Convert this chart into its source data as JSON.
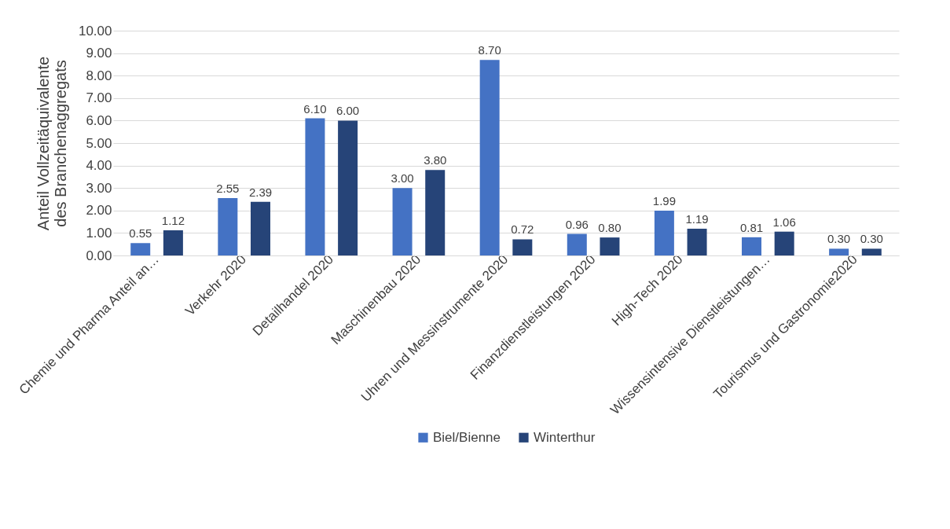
{
  "chart_data": {
    "type": "bar",
    "ylabel": "Anteil Vollzeitäquivalente des Branchenaggregats",
    "categories": [
      "Chemie und Pharma Anteil an…",
      "Verkehr 2020",
      "Detailhandel 2020",
      "Maschinenbau 2020",
      "Uhren und Messinstrumente 2020",
      "Finanzdienstleistungen 2020",
      "High-Tech 2020",
      "Wissensintensive Dienstleistungen…",
      "Tourismus und Gastronomie2020"
    ],
    "series": [
      {
        "name": "Biel/Bienne",
        "color": "#4472c4",
        "values": [
          0.55,
          2.55,
          6.1,
          3.0,
          8.7,
          0.96,
          1.99,
          0.81,
          0.3
        ],
        "value_labels": [
          "0.55",
          "2.55",
          "6.10",
          "3.00",
          "8.70",
          "0.96",
          "1.99",
          "0.81",
          "0.30"
        ]
      },
      {
        "name": "Winterthur",
        "color": "#264478",
        "values": [
          1.12,
          2.39,
          6.0,
          3.8,
          0.72,
          0.8,
          1.19,
          1.06,
          0.3
        ],
        "value_labels": [
          "1.12",
          "2.39",
          "6.00",
          "3.80",
          "0.72",
          "0.80",
          "1.19",
          "1.06",
          "0.30"
        ]
      }
    ],
    "ylim": [
      0,
      10
    ],
    "yticks": [
      {
        "value": 0,
        "label": "0.00"
      },
      {
        "value": 1,
        "label": "1.00"
      },
      {
        "value": 2,
        "label": "2.00"
      },
      {
        "value": 3,
        "label": "3.00"
      },
      {
        "value": 4,
        "label": "4.00"
      },
      {
        "value": 5,
        "label": "5.00"
      },
      {
        "value": 6,
        "label": "6.00"
      },
      {
        "value": 7,
        "label": "7.00"
      },
      {
        "value": 8,
        "label": "8.00"
      },
      {
        "value": 9,
        "label": "9.00"
      },
      {
        "value": 10,
        "label": "10.00"
      }
    ],
    "grid": "y",
    "legend": "bottom"
  }
}
